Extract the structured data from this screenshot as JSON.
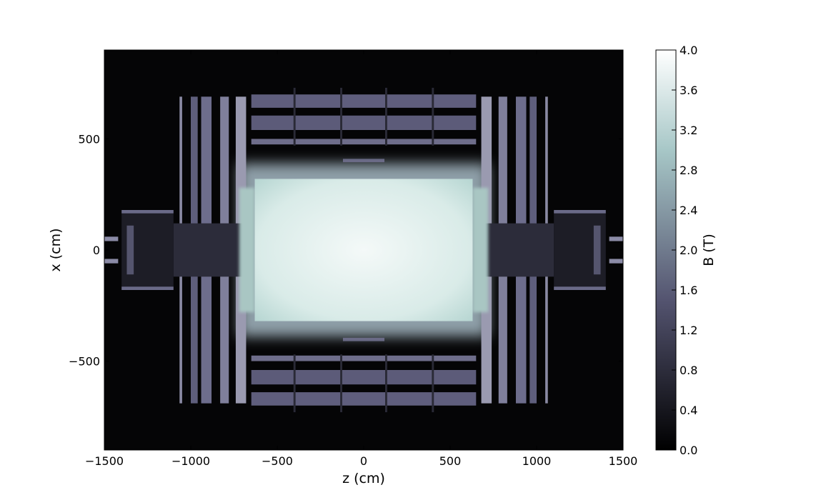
{
  "chart_data": {
    "type": "heatmap",
    "title": "",
    "xlabel": "z (cm)",
    "ylabel": "x (cm)",
    "xlim": [
      -1500,
      1500
    ],
    "ylim": [
      -900,
      900
    ],
    "xticks": [
      -1500,
      -1000,
      -500,
      0,
      500,
      1000,
      1500
    ],
    "xtick_labels": [
      "−1500",
      "−1000",
      "−500",
      "0",
      "500",
      "1000",
      "1500"
    ],
    "yticks": [
      -500,
      0,
      500
    ],
    "ytick_labels": [
      "−500",
      "0",
      "500"
    ],
    "grid": false,
    "colormap": "bone",
    "colorbar": {
      "label": "B (T)",
      "range": [
        0.0,
        4.0
      ],
      "ticks": [
        0.0,
        0.4,
        0.8,
        1.2,
        1.6,
        2.0,
        2.4,
        2.8,
        3.2,
        3.6,
        4.0
      ],
      "tick_labels": [
        "0.0",
        "0.4",
        "0.8",
        "1.2",
        "1.6",
        "2.0",
        "2.4",
        "2.8",
        "3.2",
        "3.6",
        "4.0"
      ],
      "placement": "right"
    },
    "field_regions": [
      {
        "region": "solenoid core",
        "z": [
          -630,
          630
        ],
        "x": [
          -320,
          320
        ],
        "B": 3.8
      },
      {
        "region": "endcap yoke disks",
        "z": [
          750,
          1060
        ],
        "x": [
          -690,
          690
        ],
        "B": 1.6
      },
      {
        "region": "barrel yoke layers",
        "z": [
          -650,
          650
        ],
        "x": [
          480,
          700
        ],
        "B": 1.5
      },
      {
        "region": "forward region",
        "z": [
          1100,
          1500
        ],
        "x": [
          -180,
          180
        ],
        "B": 1.1
      },
      {
        "region": "outside return yoke",
        "z": [
          -1500,
          1500
        ],
        "x": [
          -900,
          900
        ],
        "B": 0.05
      }
    ]
  }
}
